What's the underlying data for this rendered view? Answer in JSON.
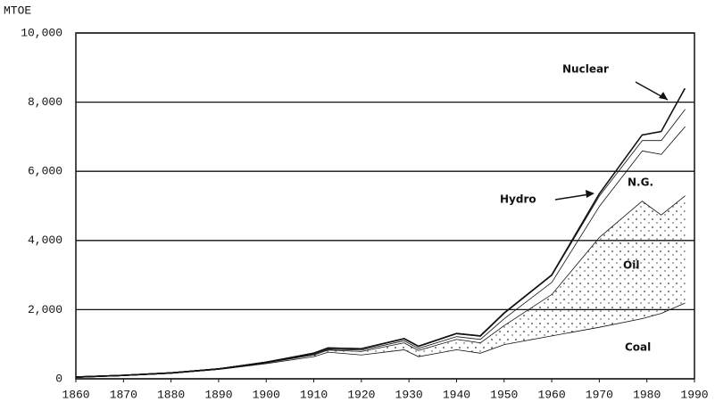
{
  "chart_data": {
    "type": "stacked_area",
    "y_label": "MTOE",
    "x": [
      1860,
      1870,
      1880,
      1890,
      1900,
      1910,
      1913,
      1920,
      1929,
      1932,
      1940,
      1945,
      1950,
      1960,
      1970,
      1979,
      1983,
      1988
    ],
    "series": [
      {
        "name": "Coal",
        "color": "#ffffff",
        "values": [
          50,
          100,
          170,
          280,
          450,
          650,
          780,
          700,
          850,
          650,
          850,
          750,
          1000,
          1250,
          1500,
          1750,
          1900,
          2200
        ]
      },
      {
        "name": "Oil",
        "color": "#dcdcdc",
        "values": [
          0,
          0,
          0,
          5,
          20,
          50,
          60,
          100,
          200,
          180,
          300,
          300,
          550,
          1200,
          2600,
          3400,
          2850,
          3100
        ]
      },
      {
        "name": "N.G.",
        "color": "#ffffff",
        "values": [
          0,
          0,
          0,
          0,
          10,
          20,
          25,
          40,
          60,
          60,
          80,
          100,
          200,
          350,
          900,
          1450,
          1750,
          2000
        ]
      },
      {
        "name": "Hydro",
        "color": "#ffffff",
        "values": [
          0,
          0,
          0,
          0,
          0,
          20,
          25,
          30,
          50,
          50,
          80,
          90,
          150,
          200,
          300,
          300,
          400,
          500
        ]
      },
      {
        "name": "Nuclear",
        "color": "#ffffff",
        "values": [
          0,
          0,
          0,
          0,
          0,
          0,
          0,
          0,
          0,
          0,
          0,
          0,
          0,
          0,
          50,
          150,
          250,
          600
        ]
      }
    ],
    "xlim": [
      1860,
      1990
    ],
    "xticks": [
      1860,
      1870,
      1880,
      1890,
      1900,
      1910,
      1920,
      1930,
      1940,
      1950,
      1960,
      1970,
      1980,
      1990
    ],
    "ylim": [
      0,
      10000
    ],
    "yticks": [
      0,
      {
        "value": 2000,
        "label": "2,000"
      },
      {
        "value": 4000,
        "label": "4,000"
      },
      {
        "value": 6000,
        "label": "6,000"
      },
      {
        "value": 8000,
        "label": "8,000"
      },
      {
        "value": 10000,
        "label": "10,000"
      }
    ],
    "grid": true
  }
}
